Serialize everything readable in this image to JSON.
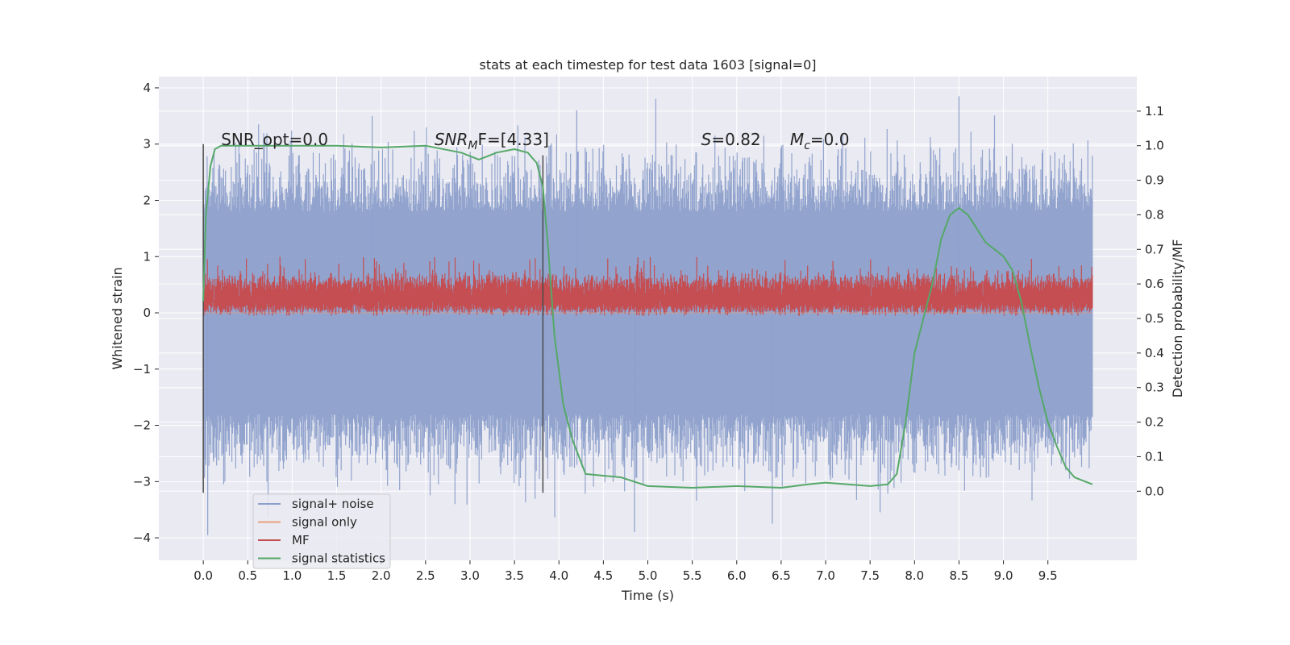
{
  "chart_data": {
    "type": "line",
    "title": "stats at each timestep for test data 1603 [signal=0]",
    "xlabel": "Time (s)",
    "ylabel": "Whitened strain",
    "ylabel_right": "Detection probability/MF",
    "xlim": [
      -0.5,
      10.5
    ],
    "ylim": [
      -4.4,
      4.2
    ],
    "ylim_right": [
      -0.2,
      1.2
    ],
    "xticks": [
      "0.0",
      "0.5",
      "1.0",
      "1.5",
      "2.0",
      "2.5",
      "3.0",
      "3.5",
      "4.0",
      "4.5",
      "5.0",
      "5.5",
      "6.0",
      "6.5",
      "7.0",
      "7.5",
      "8.0",
      "8.5",
      "9.0",
      "9.5"
    ],
    "yticks": [
      "4",
      "3",
      "2",
      "1",
      "0",
      "−1",
      "−2",
      "−3",
      "−4"
    ],
    "yticks_right": [
      "1.1",
      "1.0",
      "0.9",
      "0.8",
      "0.7",
      "0.6",
      "0.5",
      "0.4",
      "0.3",
      "0.2",
      "0.1",
      "0.0"
    ],
    "grid": true,
    "legend_position": "bottom-left",
    "colors": {
      "signal_noise": "#8da0cb",
      "signal_only": "#e8a07a",
      "mf": "#c44e52",
      "stat": "#55a868",
      "plot_bg": "#eaeaf2",
      "grid": "#ffffff",
      "vline": "#4a4a4a"
    },
    "series": [
      {
        "name": "signal+ noise",
        "kind": "noise_band",
        "x_range": [
          0.0,
          10.0
        ],
        "typical_range": [
          -1.8,
          1.8
        ],
        "max_extreme": 3.85,
        "min_extreme": -3.95
      },
      {
        "name": "signal only",
        "kind": "flat",
        "values": [
          0.0
        ]
      },
      {
        "name": "MF",
        "kind": "noise_band",
        "x_range": [
          0.0,
          10.0
        ],
        "typical_range": [
          0.05,
          0.55
        ],
        "max_extreme": 1.0,
        "min_extreme": -0.05
      },
      {
        "name": "signal statistics",
        "kind": "line",
        "axis": "right",
        "x": [
          0.0,
          0.03,
          0.08,
          0.13,
          0.2,
          0.3,
          0.5,
          1.0,
          1.5,
          2.0,
          2.5,
          2.9,
          3.1,
          3.3,
          3.5,
          3.65,
          3.75,
          3.82,
          3.88,
          3.95,
          4.05,
          4.15,
          4.3,
          4.5,
          4.7,
          5.0,
          5.5,
          6.0,
          6.5,
          6.8,
          7.0,
          7.5,
          7.7,
          7.8,
          7.9,
          8.0,
          8.1,
          8.2,
          8.3,
          8.4,
          8.5,
          8.6,
          8.7,
          8.8,
          9.0,
          9.1,
          9.2,
          9.3,
          9.4,
          9.5,
          9.6,
          9.7,
          9.8,
          9.9,
          10.0
        ],
        "y": [
          0.55,
          0.8,
          0.94,
          0.99,
          1.0,
          1.0,
          1.0,
          1.0,
          1.0,
          0.995,
          1.0,
          0.98,
          0.96,
          0.98,
          0.99,
          0.98,
          0.95,
          0.88,
          0.7,
          0.45,
          0.25,
          0.15,
          0.05,
          0.045,
          0.04,
          0.015,
          0.01,
          0.015,
          0.01,
          0.02,
          0.025,
          0.015,
          0.02,
          0.05,
          0.2,
          0.4,
          0.5,
          0.6,
          0.73,
          0.8,
          0.82,
          0.8,
          0.76,
          0.72,
          0.68,
          0.64,
          0.55,
          0.42,
          0.3,
          0.2,
          0.13,
          0.07,
          0.04,
          0.03,
          0.02
        ]
      }
    ],
    "vlines": [
      {
        "x": 0.0,
        "y_range": [
          -3.2,
          3.0
        ]
      },
      {
        "x": 3.82,
        "y_range": [
          -3.2,
          2.8
        ]
      }
    ],
    "annotations": [
      {
        "id": "snr_opt",
        "text": "SNR_opt=0.0",
        "x": 0.2
      },
      {
        "id": "snr_mf",
        "main": "SNR",
        "sub": "M",
        "rest": "F=[4.33]",
        "x": 2.6
      },
      {
        "id": "s_val",
        "italic": "S",
        "rest": "=0.82",
        "x": 5.6
      },
      {
        "id": "mc_val",
        "main": "M",
        "sub": "c",
        "rest": "=0.0",
        "x": 6.6
      }
    ]
  }
}
